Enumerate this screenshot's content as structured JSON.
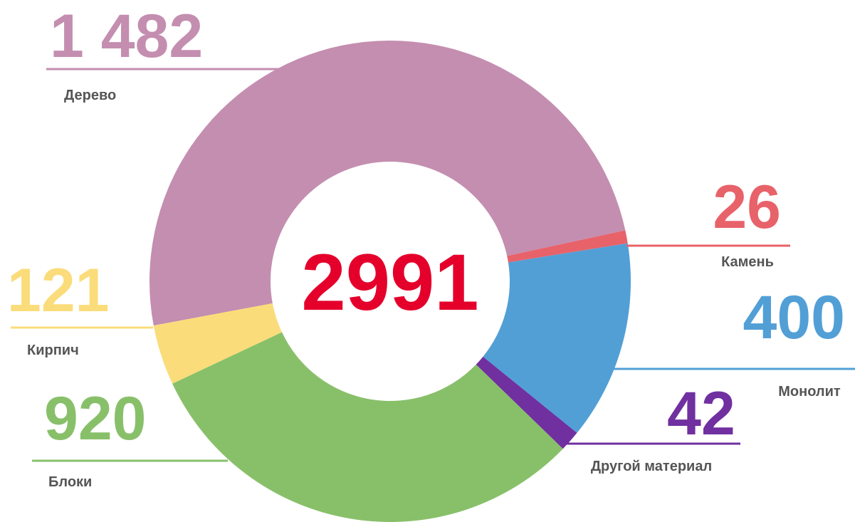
{
  "chart_data": {
    "type": "donut",
    "categories": [
      "Дерево",
      "Камень",
      "Монолит",
      "Другой материал",
      "Блоки",
      "Кирпич"
    ],
    "values": [
      1482,
      26,
      400,
      42,
      920,
      121
    ],
    "value_labels": [
      "1 482",
      "26",
      "400",
      "42",
      "920",
      "121"
    ],
    "colors": [
      "#c48eb0",
      "#e8626a",
      "#529fd6",
      "#7030a0",
      "#88c06a",
      "#fbdc7a"
    ],
    "center_label": "2991",
    "center_color": "#e4002b"
  }
}
